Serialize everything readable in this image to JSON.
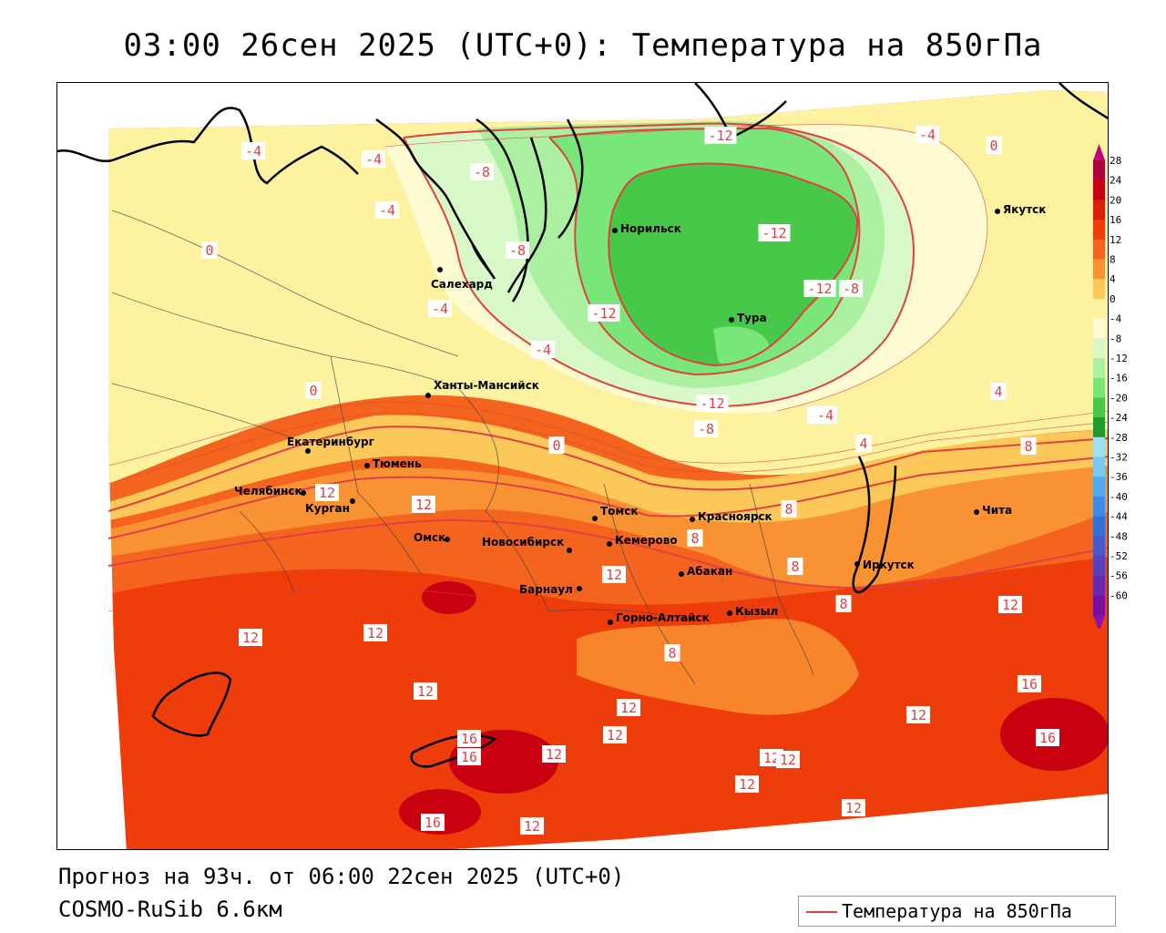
{
  "title": "03:00 26сен 2025 (UTC+0): Температура на 850гПа",
  "footer": {
    "forecast": "Прогноз на 93ч. от 06:00 22сен 2025 (UTC+0)",
    "model": "COSMO-RuSib 6.6км"
  },
  "legend": {
    "label": "Температура на 850гПа",
    "line_color": "#e04040"
  },
  "colorbar": {
    "levels": [
      "28",
      "24",
      "20",
      "16",
      "12",
      "8",
      "4",
      "0",
      "-4",
      "-8",
      "-12",
      "-16",
      "-20",
      "-24",
      "-28",
      "-32",
      "-36",
      "-40",
      "-44",
      "-48",
      "-52",
      "-56",
      "-60"
    ],
    "colors": [
      "#b0003a",
      "#c80010",
      "#dc1e0a",
      "#ee3c0a",
      "#f5641e",
      "#f99232",
      "#fcc85a",
      "#fdf2a0",
      "#fffbd2",
      "#d8f8c8",
      "#aaf0a0",
      "#78e678",
      "#48c848",
      "#1e9a2e",
      "#9ee0f0",
      "#78c8f0",
      "#50aaf0",
      "#3c8ce6",
      "#3270dc",
      "#4a58cc",
      "#5a40bc",
      "#6a28b0",
      "#7a10a0"
    ]
  },
  "cities": [
    {
      "name": "Норильск"
    },
    {
      "name": "Якутск"
    },
    {
      "name": "Салехард"
    },
    {
      "name": "Тура"
    },
    {
      "name": "Ханты-Мансийск"
    },
    {
      "name": "Екатеринбург"
    },
    {
      "name": "Тюмень"
    },
    {
      "name": "Челябинск"
    },
    {
      "name": "Курган"
    },
    {
      "name": "Омск"
    },
    {
      "name": "Новосибирск"
    },
    {
      "name": "Томск"
    },
    {
      "name": "Кемерово"
    },
    {
      "name": "Красноярск"
    },
    {
      "name": "Барнаул"
    },
    {
      "name": "Абакан"
    },
    {
      "name": "Горно-Алтайск"
    },
    {
      "name": "Кызыл"
    },
    {
      "name": "Иркутск"
    },
    {
      "name": "Чита"
    }
  ],
  "isotherm_labels": [
    "-4",
    "-4",
    "-4",
    "-8",
    "-12",
    "-4",
    "0",
    "-12",
    "-8",
    "-12",
    "-12",
    "-8",
    "-4",
    "-4",
    "-4",
    "0",
    "-12",
    "-8",
    "-4",
    "4",
    "8",
    "0",
    "0",
    "4",
    "8",
    "12",
    "12",
    "8",
    "12",
    "8",
    "12",
    "12",
    "12",
    "12",
    "12",
    "12",
    "16",
    "8",
    "8",
    "12",
    "12",
    "16",
    "16",
    "12",
    "12",
    "12",
    "12",
    "16",
    "12",
    "16"
  ]
}
